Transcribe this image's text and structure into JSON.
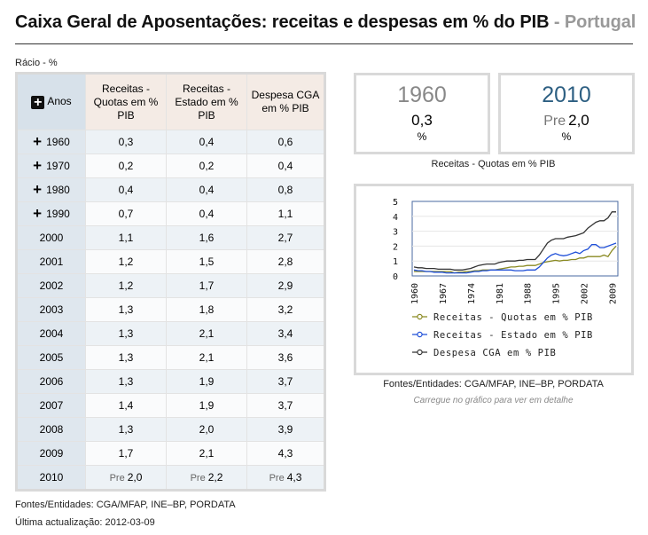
{
  "header": {
    "title": "Caixa Geral de Aposentações: receitas e despesas em % do PIB",
    "country": " - Portugal",
    "unit_label": "Rácio - %"
  },
  "table": {
    "year_header": "Anos",
    "col_headers": [
      "Receitas - Quotas em % PIB",
      "Receitas - Estado em % PIB",
      "Despesa CGA em % PIB"
    ],
    "rows": [
      {
        "year": "1960",
        "expand": true,
        "values": [
          "0,3",
          "0,4",
          "0,6"
        ]
      },
      {
        "year": "1970",
        "expand": true,
        "values": [
          "0,2",
          "0,2",
          "0,4"
        ]
      },
      {
        "year": "1980",
        "expand": true,
        "values": [
          "0,4",
          "0,4",
          "0,8"
        ]
      },
      {
        "year": "1990",
        "expand": true,
        "values": [
          "0,7",
          "0,4",
          "1,1"
        ]
      },
      {
        "year": "2000",
        "expand": false,
        "values": [
          "1,1",
          "1,6",
          "2,7"
        ]
      },
      {
        "year": "2001",
        "expand": false,
        "values": [
          "1,2",
          "1,5",
          "2,8"
        ]
      },
      {
        "year": "2002",
        "expand": false,
        "values": [
          "1,2",
          "1,7",
          "2,9"
        ]
      },
      {
        "year": "2003",
        "expand": false,
        "values": [
          "1,3",
          "1,8",
          "3,2"
        ]
      },
      {
        "year": "2004",
        "expand": false,
        "values": [
          "1,3",
          "2,1",
          "3,4"
        ]
      },
      {
        "year": "2005",
        "expand": false,
        "values": [
          "1,3",
          "2,1",
          "3,6"
        ]
      },
      {
        "year": "2006",
        "expand": false,
        "values": [
          "1,3",
          "1,9",
          "3,7"
        ]
      },
      {
        "year": "2007",
        "expand": false,
        "values": [
          "1,4",
          "1,9",
          "3,7"
        ]
      },
      {
        "year": "2008",
        "expand": false,
        "values": [
          "1,3",
          "2,0",
          "3,9"
        ]
      },
      {
        "year": "2009",
        "expand": false,
        "values": [
          "1,7",
          "2,1",
          "4,3"
        ]
      },
      {
        "year": "2010",
        "expand": false,
        "pre": "Pre",
        "values": [
          "2,0",
          "2,2",
          "4,3"
        ]
      }
    ]
  },
  "cards": {
    "left": {
      "year": "1960",
      "value": "0,3",
      "unit": "%"
    },
    "right": {
      "year": "2010",
      "pre": "Pre",
      "value": "2,0",
      "unit": "%"
    },
    "caption": "Receitas - Quotas em % PIB"
  },
  "chart_data": {
    "type": "line",
    "x": [
      1960,
      1961,
      1962,
      1963,
      1964,
      1965,
      1966,
      1967,
      1968,
      1969,
      1970,
      1971,
      1972,
      1973,
      1974,
      1975,
      1976,
      1977,
      1978,
      1979,
      1980,
      1981,
      1982,
      1983,
      1984,
      1985,
      1986,
      1987,
      1988,
      1989,
      1990,
      1991,
      1992,
      1993,
      1994,
      1995,
      1996,
      1997,
      1998,
      1999,
      2000,
      2001,
      2002,
      2003,
      2004,
      2005,
      2006,
      2007,
      2008,
      2009,
      2010
    ],
    "x_ticks": [
      "1960",
      "1967",
      "1974",
      "1981",
      "1988",
      "1995",
      "2002",
      "2009"
    ],
    "ylim": [
      0,
      5
    ],
    "y_ticks": [
      "0",
      "1",
      "2",
      "3",
      "4",
      "5"
    ],
    "series": [
      {
        "name": "Receitas - Quotas em % PIB",
        "color": "#8a8a22",
        "values": [
          0.3,
          0.3,
          0.3,
          0.3,
          0.3,
          0.3,
          0.3,
          0.3,
          0.3,
          0.3,
          0.2,
          0.25,
          0.25,
          0.3,
          0.3,
          0.35,
          0.35,
          0.4,
          0.4,
          0.4,
          0.4,
          0.45,
          0.5,
          0.55,
          0.6,
          0.6,
          0.65,
          0.65,
          0.7,
          0.7,
          0.7,
          0.8,
          0.9,
          0.95,
          1.0,
          1.05,
          1.0,
          1.05,
          1.05,
          1.1,
          1.1,
          1.2,
          1.2,
          1.3,
          1.3,
          1.3,
          1.3,
          1.4,
          1.3,
          1.7,
          2.0
        ]
      },
      {
        "name": "Receitas - Estado em % PIB",
        "color": "#1f4fd8",
        "values": [
          0.4,
          0.35,
          0.35,
          0.3,
          0.3,
          0.25,
          0.25,
          0.25,
          0.2,
          0.2,
          0.2,
          0.2,
          0.2,
          0.2,
          0.25,
          0.3,
          0.3,
          0.35,
          0.35,
          0.4,
          0.4,
          0.4,
          0.4,
          0.4,
          0.4,
          0.35,
          0.35,
          0.35,
          0.4,
          0.4,
          0.4,
          0.6,
          0.9,
          1.2,
          1.4,
          1.5,
          1.4,
          1.35,
          1.4,
          1.5,
          1.6,
          1.5,
          1.7,
          1.8,
          2.1,
          2.1,
          1.9,
          1.9,
          2.0,
          2.1,
          2.2
        ]
      },
      {
        "name": "Despesa CGA em % PIB",
        "color": "#333333",
        "values": [
          0.6,
          0.55,
          0.55,
          0.5,
          0.5,
          0.5,
          0.45,
          0.45,
          0.45,
          0.45,
          0.4,
          0.4,
          0.4,
          0.45,
          0.5,
          0.6,
          0.7,
          0.75,
          0.8,
          0.8,
          0.8,
          0.9,
          0.95,
          1.0,
          1.0,
          1.0,
          1.05,
          1.05,
          1.1,
          1.1,
          1.1,
          1.4,
          1.8,
          2.2,
          2.4,
          2.5,
          2.5,
          2.5,
          2.6,
          2.65,
          2.7,
          2.8,
          2.9,
          3.2,
          3.4,
          3.6,
          3.7,
          3.7,
          3.9,
          4.3,
          4.3
        ]
      }
    ]
  },
  "chart_footer": {
    "sources": "Fontes/Entidades: CGA/MFAP, INE–BP, PORDATA",
    "hint": "Carregue no gráfico para ver em detalhe"
  },
  "footer": {
    "sources": "Fontes/Entidades: CGA/MFAP, INE–BP, PORDATA",
    "updated": "Última actualização: 2012-03-09"
  }
}
